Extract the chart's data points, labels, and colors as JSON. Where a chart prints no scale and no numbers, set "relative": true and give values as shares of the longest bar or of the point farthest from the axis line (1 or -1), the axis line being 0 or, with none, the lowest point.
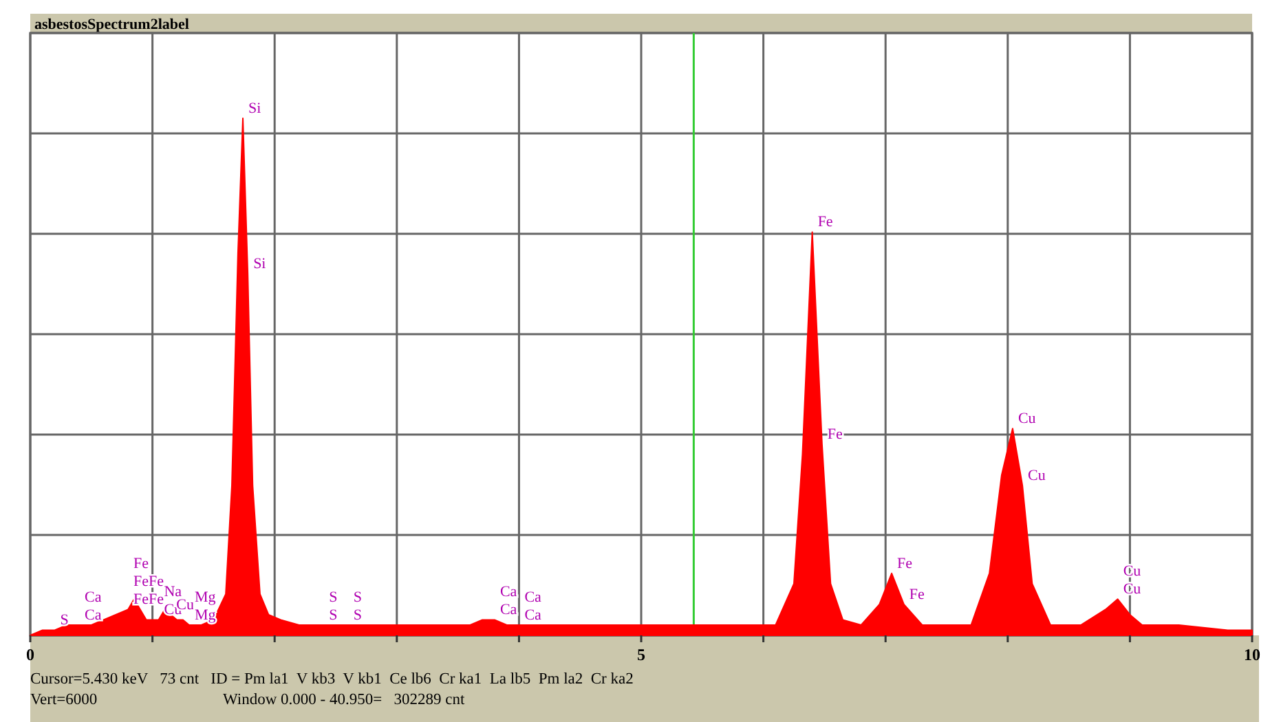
{
  "chart_data": {
    "type": "area",
    "title": "asbestosSpectrum2label",
    "relative": true,
    "x": [
      0,
      0.1,
      0.2,
      0.3,
      0.4,
      0.5,
      0.6,
      0.7,
      0.8,
      0.85,
      0.9,
      0.95,
      1.0,
      1.05,
      1.1,
      1.15,
      1.2,
      1.25,
      1.3,
      1.4,
      1.5,
      1.6,
      1.65,
      1.7,
      1.74,
      1.78,
      1.82,
      1.88,
      1.95,
      2.05,
      2.2,
      2.4,
      2.6,
      2.8,
      3.0,
      3.3,
      3.6,
      3.7,
      3.8,
      3.9,
      4.0,
      4.3,
      4.6,
      5.0,
      5.5,
      5.9,
      6.1,
      6.25,
      6.32,
      6.4,
      6.48,
      6.55,
      6.65,
      6.8,
      6.95,
      7.05,
      7.15,
      7.3,
      7.5,
      7.7,
      7.85,
      7.95,
      8.04,
      8.12,
      8.2,
      8.35,
      8.6,
      8.8,
      8.9,
      9.0,
      9.1,
      9.4,
      9.8,
      10
    ],
    "series": [
      {
        "color": "#ff0000",
        "values": [
          0,
          0.01,
          0.01,
          0.02,
          0.02,
          0.02,
          0.03,
          0.04,
          0.05,
          0.07,
          0.05,
          0.03,
          0.03,
          0.03,
          0.05,
          0.04,
          0.03,
          0.03,
          0.02,
          0.02,
          0.03,
          0.08,
          0.29,
          0.74,
          1,
          0.7,
          0.29,
          0.08,
          0.04,
          0.03,
          0.02,
          0.02,
          0.02,
          0.02,
          0.02,
          0.02,
          0.02,
          0.03,
          0.03,
          0.02,
          0.02,
          0.02,
          0.02,
          0.02,
          0.02,
          0.02,
          0.02,
          0.1,
          0.35,
          0.78,
          0.37,
          0.1,
          0.03,
          0.02,
          0.06,
          0.12,
          0.06,
          0.02,
          0.02,
          0.02,
          0.12,
          0.31,
          0.4,
          0.29,
          0.1,
          0.02,
          0.02,
          0.05,
          0.07,
          0.04,
          0.02,
          0.02,
          0.01,
          0.01
        ]
      }
    ],
    "xlim": [
      0,
      10
    ],
    "xticks": [
      0,
      {
        "value": 1,
        "label": null
      },
      {
        "value": 2,
        "label": null
      },
      {
        "value": 3,
        "label": null
      },
      {
        "value": 4,
        "label": null
      },
      5,
      {
        "value": 6,
        "label": null
      },
      {
        "value": 7,
        "label": null
      },
      {
        "value": 8,
        "label": null
      },
      {
        "value": 9,
        "label": null
      },
      10
    ],
    "tick_labels": "x",
    "grid": true,
    "ref_lines": [
      {
        "axis": "x",
        "value": 5.43,
        "color": "#33cc33"
      }
    ],
    "annotations": [
      {
        "text": "Si",
        "x": 1.74,
        "y": 1
      },
      {
        "text": "Si",
        "x": 1.78,
        "y": 0.7
      },
      {
        "text": "Fe",
        "x": 6.4,
        "y": 0.78
      },
      {
        "text": "Fe",
        "x": 6.48,
        "y": 0.37
      },
      {
        "text": "Cu",
        "x": 8.04,
        "y": 0.4
      },
      {
        "text": "Cu",
        "x": 8.12,
        "y": 0.29
      },
      {
        "text": "Fe",
        "x": 7.05,
        "y": 0.12
      },
      {
        "text": "Fe",
        "x": 7.15,
        "y": 0.06
      },
      {
        "text": "Cu",
        "x": 8.9,
        "y": 0.07
      },
      {
        "text": "Cu",
        "x": 8.9,
        "y": 0.07
      },
      {
        "text": "S",
        "x": 0.2,
        "y": 0.01
      },
      {
        "text": "Ca",
        "x": 0.4,
        "y": 0.02
      },
      {
        "text": "Ca",
        "x": 0.4,
        "y": 0.02
      },
      {
        "text": "FeFe",
        "x": 0.8,
        "y": 0.05
      },
      {
        "text": "FeFe",
        "x": 0.8,
        "y": 0.05
      },
      {
        "text": "Fe",
        "x": 0.8,
        "y": 0.05
      },
      {
        "text": "Cu",
        "x": 1.05,
        "y": 0.03
      },
      {
        "text": "Na",
        "x": 1.05,
        "y": 0.03
      },
      {
        "text": "Cu",
        "x": 1.15,
        "y": 0.04
      },
      {
        "text": "Mg",
        "x": 1.3,
        "y": 0.02
      },
      {
        "text": "Mg",
        "x": 1.3,
        "y": 0.02
      },
      {
        "text": "S",
        "x": 2.4,
        "y": 0.02
      },
      {
        "text": "S",
        "x": 2.4,
        "y": 0.02
      },
      {
        "text": "S",
        "x": 2.6,
        "y": 0.02
      },
      {
        "text": "S",
        "x": 2.6,
        "y": 0.02
      },
      {
        "text": "Ca",
        "x": 3.8,
        "y": 0.03
      },
      {
        "text": "Ca",
        "x": 3.8,
        "y": 0.03
      },
      {
        "text": "Ca",
        "x": 4.0,
        "y": 0.02
      },
      {
        "text": "Ca",
        "x": 4.0,
        "y": 0.02
      },
      "Cursor=5.430 keV   73 cnt   ID = Pm la1  V kb3  V kb1  Ce lb6  Cr ka1  La lb5  Pm la2  Cr ka2",
      "Vert=6000",
      "Window 0.000 - 40.950=   302289 cnt"
    ]
  }
}
